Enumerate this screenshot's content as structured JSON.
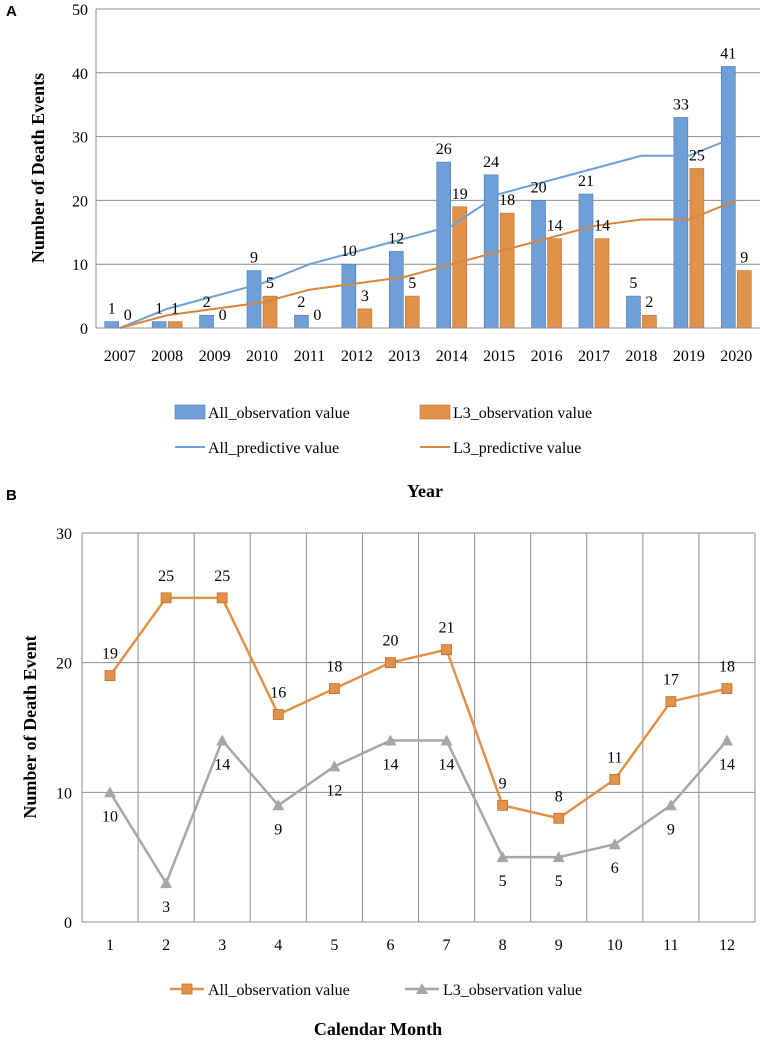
{
  "chart_data": [
    {
      "panel": "A",
      "type": "bar",
      "ylabel": "Number of Death Events",
      "xlabel": "Year",
      "ylim": [
        0,
        50
      ],
      "yticks": [
        0,
        10,
        20,
        30,
        40,
        50
      ],
      "categories": [
        "2007",
        "2008",
        "2009",
        "2010",
        "2011",
        "2012",
        "2013",
        "2014",
        "2015",
        "2016",
        "2017",
        "2018",
        "2019",
        "2020"
      ],
      "series": [
        {
          "name": "All_observation value",
          "kind": "bar",
          "color": "#6f9fd8",
          "edge": "#4a78b4",
          "values": [
            1,
            1,
            2,
            9,
            2,
            10,
            12,
            26,
            24,
            20,
            21,
            5,
            33,
            41
          ]
        },
        {
          "name": "L3_observation value",
          "kind": "bar",
          "color": "#e0914a",
          "edge": "#c0702a",
          "values": [
            0,
            1,
            0,
            5,
            0,
            3,
            5,
            19,
            18,
            14,
            14,
            2,
            25,
            9
          ]
        },
        {
          "name": "All_predictive value",
          "kind": "line",
          "color": "#6f9fd8",
          "values": [
            0,
            3,
            5,
            7,
            10,
            12,
            14,
            16,
            21,
            23,
            25,
            27,
            27,
            30
          ]
        },
        {
          "name": "L3_predictive value",
          "kind": "line",
          "color": "#d9853b",
          "values": [
            0,
            2,
            3,
            4,
            6,
            7,
            8,
            10,
            12,
            14,
            16,
            17,
            17,
            20
          ]
        }
      ],
      "bar_labels": {
        "All_observation value": [
          "1",
          "1",
          "2",
          "9",
          "2",
          "10",
          "12",
          "26",
          "24",
          "20",
          "21",
          "5",
          "33",
          "41"
        ],
        "L3_observation value": [
          "0",
          "1",
          "0",
          "5",
          "0",
          "3",
          "5",
          "19",
          "18",
          "14",
          "14",
          "2",
          "25",
          "9"
        ]
      }
    },
    {
      "panel": "B",
      "type": "line",
      "ylabel": "Number of Death Event",
      "xlabel": "Calendar Month",
      "ylim": [
        0,
        30
      ],
      "yticks": [
        0,
        10,
        20,
        30
      ],
      "grid": true,
      "categories": [
        "1",
        "2",
        "3",
        "4",
        "5",
        "6",
        "7",
        "8",
        "9",
        "10",
        "11",
        "12"
      ],
      "series": [
        {
          "name": "All_observation value",
          "marker": "square",
          "color": "#e0914a",
          "values": [
            19,
            25,
            25,
            16,
            18,
            20,
            21,
            9,
            8,
            11,
            17,
            18
          ]
        },
        {
          "name": "L3_observation value",
          "marker": "triangle",
          "color": "#a6a6a6",
          "values": [
            10,
            3,
            14,
            9,
            12,
            14,
            14,
            5,
            5,
            6,
            9,
            14
          ]
        }
      ]
    }
  ]
}
